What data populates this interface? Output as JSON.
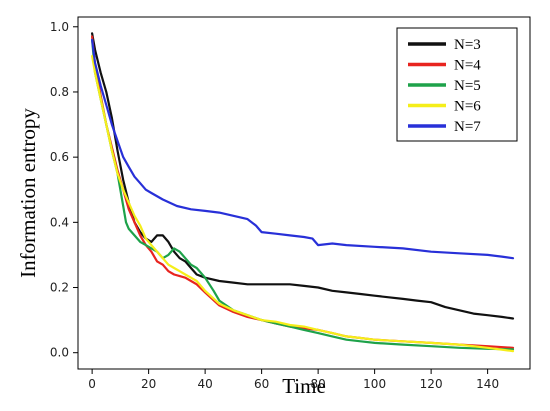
{
  "chart_data": {
    "type": "line",
    "xlabel": "Time",
    "ylabel": "Information entropy",
    "xlim": [
      -5,
      155
    ],
    "ylim": [
      -0.05,
      1.03
    ],
    "xticks": [
      0,
      20,
      40,
      60,
      80,
      100,
      120,
      140
    ],
    "yticks": [
      0.0,
      0.2,
      0.4,
      0.6,
      0.8,
      1.0
    ],
    "xtick_labels": [
      "0",
      "20",
      "40",
      "60",
      "80",
      "100",
      "120",
      "140"
    ],
    "ytick_labels": [
      "0.0",
      "0.2",
      "0.4",
      "0.6",
      "0.8",
      "1.0"
    ],
    "grid": false,
    "legend_position": "top-right",
    "series": [
      {
        "name": "N=3",
        "color": "#111111",
        "x": [
          0,
          1,
          3,
          5,
          7,
          9,
          11,
          13,
          15,
          17,
          19,
          21,
          23,
          25,
          27,
          29,
          31,
          33,
          35,
          37,
          40,
          45,
          50,
          55,
          60,
          65,
          70,
          75,
          80,
          85,
          90,
          95,
          100,
          105,
          110,
          115,
          120,
          125,
          130,
          135,
          140,
          145,
          149
        ],
        "y": [
          0.98,
          0.93,
          0.86,
          0.8,
          0.72,
          0.62,
          0.53,
          0.46,
          0.4,
          0.37,
          0.35,
          0.34,
          0.36,
          0.36,
          0.34,
          0.31,
          0.29,
          0.28,
          0.26,
          0.24,
          0.23,
          0.22,
          0.215,
          0.21,
          0.21,
          0.21,
          0.21,
          0.205,
          0.2,
          0.19,
          0.185,
          0.18,
          0.175,
          0.17,
          0.165,
          0.16,
          0.155,
          0.14,
          0.13,
          0.12,
          0.115,
          0.11,
          0.105
        ]
      },
      {
        "name": "N=4",
        "color": "#e8241f",
        "x": [
          0,
          1,
          3,
          5,
          7,
          9,
          11,
          13,
          15,
          17,
          19,
          21,
          23,
          25,
          27,
          29,
          31,
          33,
          35,
          37,
          40,
          45,
          50,
          55,
          60,
          65,
          70,
          75,
          80,
          85,
          90,
          95,
          100,
          110,
          120,
          130,
          140,
          149
        ],
        "y": [
          0.97,
          0.88,
          0.79,
          0.7,
          0.63,
          0.56,
          0.5,
          0.44,
          0.4,
          0.36,
          0.33,
          0.31,
          0.28,
          0.27,
          0.25,
          0.24,
          0.235,
          0.23,
          0.22,
          0.21,
          0.185,
          0.145,
          0.125,
          0.11,
          0.1,
          0.09,
          0.08,
          0.075,
          0.07,
          0.06,
          0.05,
          0.045,
          0.04,
          0.035,
          0.03,
          0.025,
          0.02,
          0.015
        ]
      },
      {
        "name": "N=5",
        "color": "#1ea24a",
        "x": [
          0,
          1,
          3,
          5,
          7,
          9,
          11,
          12,
          13,
          15,
          17,
          19,
          21,
          23,
          25,
          27,
          29,
          31,
          33,
          35,
          37,
          40,
          43,
          45,
          50,
          55,
          60,
          65,
          70,
          75,
          80,
          85,
          90,
          95,
          100,
          110,
          120,
          130,
          140,
          149
        ],
        "y": [
          0.96,
          0.86,
          0.78,
          0.7,
          0.62,
          0.55,
          0.45,
          0.4,
          0.38,
          0.36,
          0.34,
          0.33,
          0.32,
          0.31,
          0.29,
          0.3,
          0.32,
          0.31,
          0.29,
          0.27,
          0.26,
          0.23,
          0.19,
          0.16,
          0.13,
          0.115,
          0.1,
          0.09,
          0.08,
          0.07,
          0.06,
          0.05,
          0.04,
          0.035,
          0.03,
          0.025,
          0.02,
          0.015,
          0.012,
          0.01
        ]
      },
      {
        "name": "N=6",
        "color": "#f5ee1a",
        "x": [
          0,
          1,
          3,
          5,
          7,
          9,
          11,
          13,
          15,
          17,
          19,
          21,
          23,
          25,
          27,
          29,
          31,
          33,
          35,
          37,
          40,
          45,
          50,
          55,
          60,
          65,
          70,
          75,
          80,
          85,
          90,
          95,
          100,
          110,
          120,
          130,
          140,
          149
        ],
        "y": [
          0.91,
          0.86,
          0.78,
          0.7,
          0.62,
          0.55,
          0.5,
          0.46,
          0.42,
          0.39,
          0.35,
          0.33,
          0.31,
          0.29,
          0.27,
          0.26,
          0.25,
          0.24,
          0.23,
          0.22,
          0.19,
          0.15,
          0.13,
          0.115,
          0.1,
          0.095,
          0.085,
          0.08,
          0.07,
          0.06,
          0.05,
          0.045,
          0.04,
          0.035,
          0.03,
          0.025,
          0.015,
          0.005
        ]
      },
      {
        "name": "N=7",
        "color": "#2830d8",
        "x": [
          0,
          1,
          3,
          5,
          7,
          9,
          11,
          13,
          15,
          17,
          19,
          21,
          25,
          30,
          35,
          40,
          45,
          50,
          55,
          58,
          60,
          65,
          70,
          75,
          78,
          80,
          85,
          90,
          100,
          110,
          120,
          130,
          140,
          145,
          149
        ],
        "y": [
          0.96,
          0.89,
          0.82,
          0.76,
          0.7,
          0.65,
          0.6,
          0.57,
          0.54,
          0.52,
          0.5,
          0.49,
          0.47,
          0.45,
          0.44,
          0.435,
          0.43,
          0.42,
          0.41,
          0.39,
          0.37,
          0.365,
          0.36,
          0.355,
          0.35,
          0.33,
          0.335,
          0.33,
          0.325,
          0.32,
          0.31,
          0.305,
          0.3,
          0.295,
          0.29
        ]
      }
    ]
  }
}
